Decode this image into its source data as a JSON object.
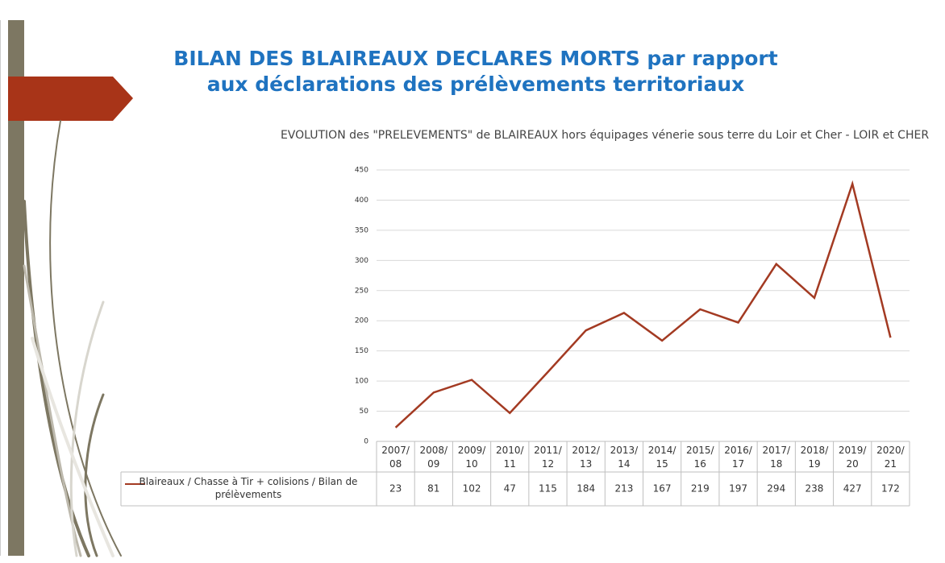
{
  "slide": {
    "title_lines": [
      "BILAN DES BLAIREAUX DECLARES MORTS par rapport",
      "aux déclarations des prélèvements territoriaux"
    ]
  },
  "chart_data": {
    "type": "line",
    "title": "EVOLUTION des \"PRELEVEMENTS\" de BLAIREAUX hors équipages vénerie sous terre du Loir et Cher - LOIR et CHER",
    "categories": [
      "2007/08",
      "2008/09",
      "2009/10",
      "2010/11",
      "2011/12",
      "2012/13",
      "2013/14",
      "2014/15",
      "2015/16",
      "2016/17",
      "2017/18",
      "2018/19",
      "2019/20",
      "2020/21"
    ],
    "series": [
      {
        "name": "Blaireaux / Chasse à Tir + colisions / Bilan de prélèvements",
        "color": "#a33a22",
        "values": [
          23,
          81,
          102,
          47,
          115,
          184,
          213,
          167,
          219,
          197,
          294,
          238,
          427,
          172
        ]
      }
    ],
    "ylim": [
      0,
      450
    ],
    "yticks": [
      0,
      50,
      100,
      150,
      200,
      250,
      300,
      350,
      400,
      450
    ],
    "grid": true,
    "data_table": true
  }
}
